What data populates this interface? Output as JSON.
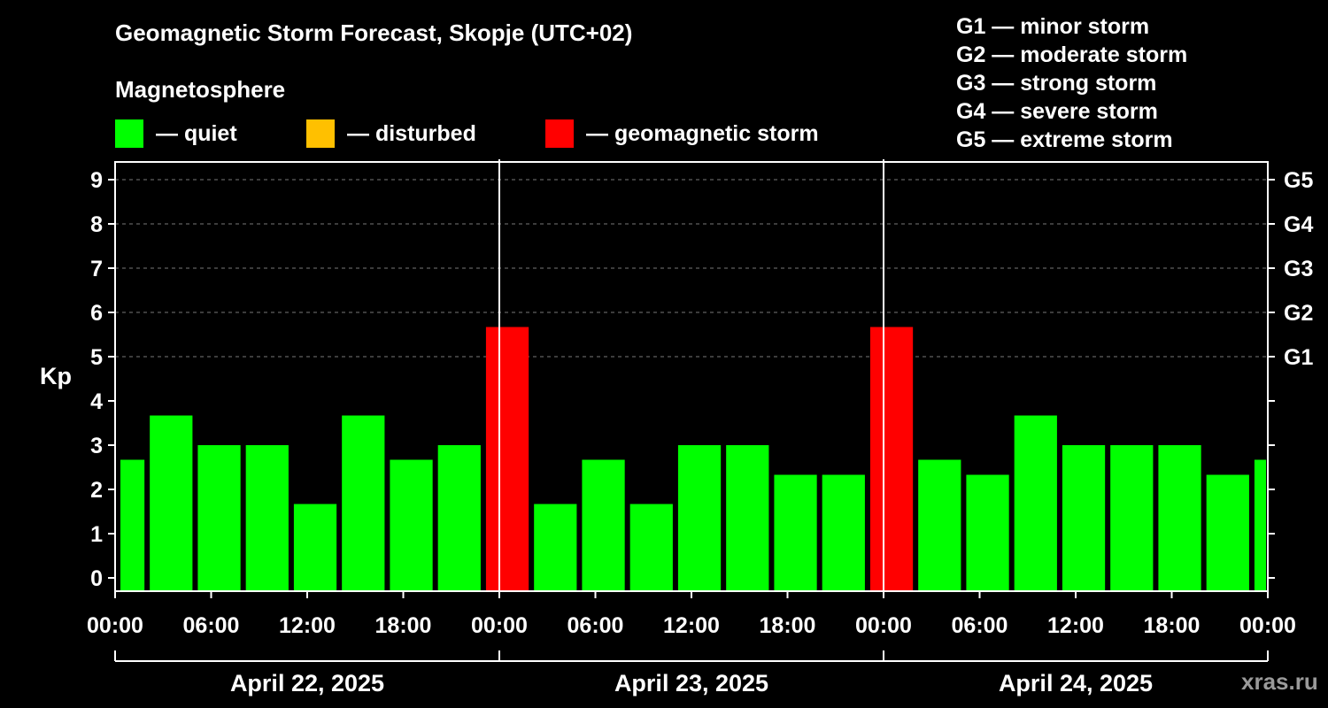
{
  "title": "Geomagnetic Storm Forecast, Skopje (UTC+02)",
  "subtitle": "Magnetosphere",
  "legend": [
    {
      "label": "— quiet",
      "color": "#00ff00"
    },
    {
      "label": "— disturbed",
      "color": "#ffc000"
    },
    {
      "label": "— geomagnetic storm",
      "color": "#ff0000"
    }
  ],
  "g_scale": [
    "G1 — minor storm",
    "G2 — moderate storm",
    "G3 — strong storm",
    "G4 — severe storm",
    "G5 — extreme storm"
  ],
  "watermark": "xras.ru",
  "chart_data": {
    "type": "bar",
    "ylabel": "Kp",
    "ylim": [
      -0.3,
      9.4
    ],
    "yticks": [
      0,
      1,
      2,
      3,
      4,
      5,
      6,
      7,
      8,
      9
    ],
    "right_ticks": [
      {
        "value": 5,
        "label": "G1"
      },
      {
        "value": 6,
        "label": "G2"
      },
      {
        "value": 7,
        "label": "G3"
      },
      {
        "value": 8,
        "label": "G4"
      },
      {
        "value": 9,
        "label": "G5"
      }
    ],
    "grid": "horizontal dashed at 5, 6, 7, 8, 9",
    "x_unit": "hours since April 22, 2025 00:00 (UTC+02)",
    "xlim": [
      0,
      72
    ],
    "xticks": [
      {
        "value": 0,
        "label": "00:00"
      },
      {
        "value": 6,
        "label": "06:00"
      },
      {
        "value": 12,
        "label": "12:00"
      },
      {
        "value": 18,
        "label": "18:00"
      },
      {
        "value": 24,
        "label": "00:00"
      },
      {
        "value": 30,
        "label": "06:00"
      },
      {
        "value": 36,
        "label": "12:00"
      },
      {
        "value": 42,
        "label": "18:00"
      },
      {
        "value": 48,
        "label": "00:00"
      },
      {
        "value": 54,
        "label": "06:00"
      },
      {
        "value": 60,
        "label": "12:00"
      },
      {
        "value": 66,
        "label": "18:00"
      },
      {
        "value": 72,
        "label": "00:00"
      }
    ],
    "day_separators": [
      24,
      48
    ],
    "dates": [
      {
        "label": "April 22, 2025",
        "start": 0,
        "end": 24
      },
      {
        "label": "April 23, 2025",
        "start": 24,
        "end": 48
      },
      {
        "label": "April 24, 2025",
        "start": 48,
        "end": 72
      }
    ],
    "bars": [
      {
        "start": 0,
        "end": 2,
        "value": 2.67,
        "level": "quiet"
      },
      {
        "start": 2,
        "end": 5,
        "value": 3.67,
        "level": "quiet"
      },
      {
        "start": 5,
        "end": 8,
        "value": 3.0,
        "level": "quiet"
      },
      {
        "start": 8,
        "end": 11,
        "value": 3.0,
        "level": "quiet"
      },
      {
        "start": 11,
        "end": 14,
        "value": 1.67,
        "level": "quiet"
      },
      {
        "start": 14,
        "end": 17,
        "value": 3.67,
        "level": "quiet"
      },
      {
        "start": 17,
        "end": 20,
        "value": 2.67,
        "level": "quiet"
      },
      {
        "start": 20,
        "end": 23,
        "value": 3.0,
        "level": "quiet"
      },
      {
        "start": 23,
        "end": 26,
        "value": 5.67,
        "level": "storm"
      },
      {
        "start": 26,
        "end": 29,
        "value": 1.67,
        "level": "quiet"
      },
      {
        "start": 29,
        "end": 32,
        "value": 2.67,
        "level": "quiet"
      },
      {
        "start": 32,
        "end": 35,
        "value": 1.67,
        "level": "quiet"
      },
      {
        "start": 35,
        "end": 38,
        "value": 3.0,
        "level": "quiet"
      },
      {
        "start": 38,
        "end": 41,
        "value": 3.0,
        "level": "quiet"
      },
      {
        "start": 41,
        "end": 44,
        "value": 2.33,
        "level": "quiet"
      },
      {
        "start": 44,
        "end": 47,
        "value": 2.33,
        "level": "quiet"
      },
      {
        "start": 47,
        "end": 50,
        "value": 5.67,
        "level": "storm"
      },
      {
        "start": 50,
        "end": 53,
        "value": 2.67,
        "level": "quiet"
      },
      {
        "start": 53,
        "end": 56,
        "value": 2.33,
        "level": "quiet"
      },
      {
        "start": 56,
        "end": 59,
        "value": 3.67,
        "level": "quiet"
      },
      {
        "start": 59,
        "end": 62,
        "value": 3.0,
        "level": "quiet"
      },
      {
        "start": 62,
        "end": 65,
        "value": 3.0,
        "level": "quiet"
      },
      {
        "start": 65,
        "end": 68,
        "value": 3.0,
        "level": "quiet"
      },
      {
        "start": 68,
        "end": 71,
        "value": 2.33,
        "level": "quiet"
      },
      {
        "start": 71,
        "end": 72,
        "value": 2.67,
        "level": "quiet"
      }
    ],
    "level_colors": {
      "quiet": "#00ff00",
      "disturbed": "#ffc000",
      "storm": "#ff0000"
    }
  }
}
